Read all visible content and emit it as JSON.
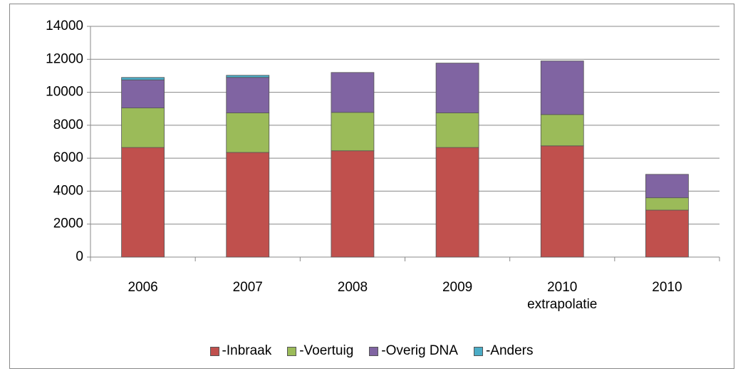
{
  "chart_data": {
    "type": "stacked_bar",
    "categories": [
      "2006",
      "2007",
      "2008",
      "2009",
      "2010 extrapolatie",
      "2010"
    ],
    "series": [
      {
        "name": "-Inbraak",
        "color": "#c0504d",
        "values": [
          6650,
          6350,
          6450,
          6650,
          6750,
          2850
        ]
      },
      {
        "name": "-Voertuig",
        "color": "#9bbb59",
        "values": [
          2400,
          2400,
          2330,
          2100,
          1900,
          750
        ]
      },
      {
        "name": "-Overig DNA",
        "color": "#8064a2",
        "values": [
          1700,
          2150,
          2420,
          3020,
          3250,
          1420
        ]
      },
      {
        "name": "-Anders",
        "color": "#4bacc6",
        "values": [
          150,
          130,
          0,
          0,
          0,
          0
        ]
      }
    ],
    "ylim": [
      0,
      14000
    ],
    "yticks": [
      0,
      2000,
      4000,
      6000,
      8000,
      10000,
      12000,
      14000
    ],
    "grid": true,
    "legend": "bottom"
  }
}
